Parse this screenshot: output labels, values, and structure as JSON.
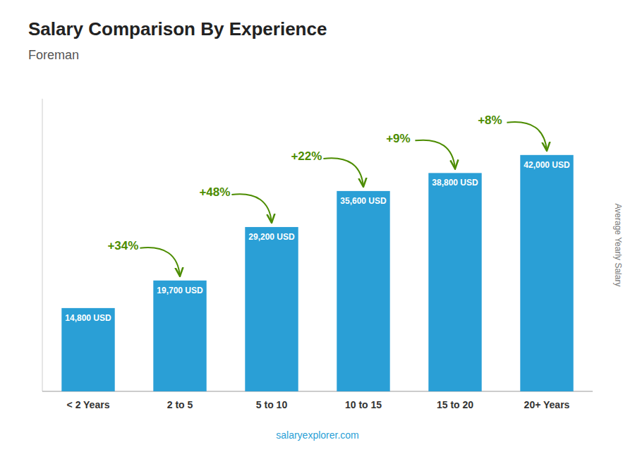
{
  "chart_data": {
    "type": "bar",
    "title": "Salary Comparison By Experience",
    "subtitle": "Foreman",
    "ylabel": "Average Yearly Salary",
    "categories": [
      "< 2 Years",
      "2 to 5",
      "5 to 10",
      "10 to 15",
      "15 to 20",
      "20+ Years"
    ],
    "values": [
      14800,
      19700,
      29200,
      35600,
      38800,
      42000
    ],
    "value_labels": [
      "14,800 USD",
      "19,700 USD",
      "29,200 USD",
      "35,600 USD",
      "38,800 USD",
      "42,000 USD"
    ],
    "data_labels": true,
    "annotations": [
      null,
      "+34%",
      "+48%",
      "+22%",
      "+9%",
      "+8%"
    ],
    "watermark": "salaryexplorer.com",
    "color": "#2a9fd6",
    "ylim": [
      0,
      52000
    ],
    "tick_labels": "x",
    "grid": false
  }
}
